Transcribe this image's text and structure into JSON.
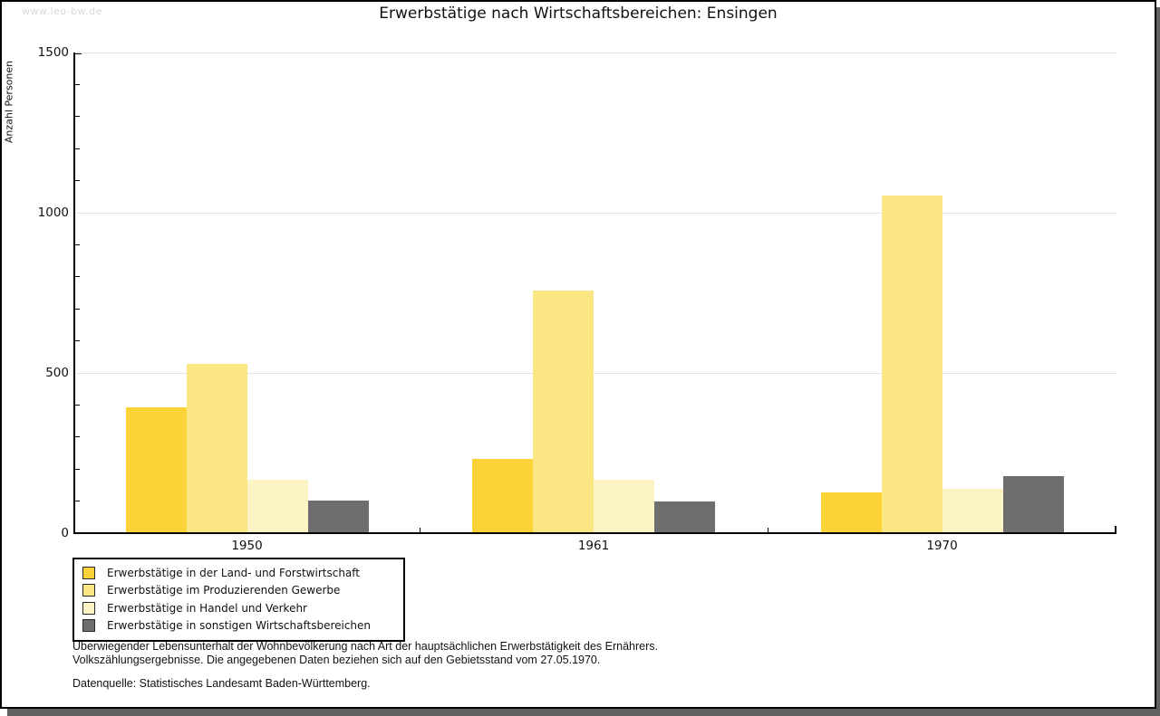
{
  "watermark": "www.leo-bw.de",
  "title": "Erwerbstätige nach Wirtschaftsbereichen: Ensingen",
  "chart_data": {
    "type": "bar",
    "title": "Erwerbstätige nach Wirtschaftsbereichen: Ensingen",
    "xlabel": "",
    "ylabel": "Anzahl Personen",
    "ylim": [
      0,
      1500
    ],
    "ytick_major": [
      0,
      500,
      1000,
      1500
    ],
    "ytick_minor_step": 100,
    "grid": "horizontal major gridlines",
    "legend_position": "bottom-left",
    "categories": [
      "1950",
      "1961",
      "1970"
    ],
    "series": [
      {
        "name": "Erwerbstätige in der Land- und Forstwirtschaft",
        "color": "#FBD336",
        "values": [
          390,
          230,
          125
        ]
      },
      {
        "name": "Erwerbstätige im Produzierenden Gewerbe",
        "color": "#FAE682",
        "values": [
          525,
          755,
          1050
        ]
      },
      {
        "name": "Erwerbstätige in Handel und Verkehr",
        "color": "#FCF4C5",
        "values": [
          165,
          165,
          135
        ]
      },
      {
        "name": "Erwerbstätige in sonstigen Wirtschaftsbereichen",
        "color": "#6E6E6E",
        "values": [
          100,
          95,
          175
        ]
      }
    ]
  },
  "footnotes": {
    "line1": "Überwiegender Lebensunterhalt der Wohnbevölkerung nach Art der hauptsächlichen Erwerbstätigkeit des Ernährers.",
    "line2": "Volkszählungsergebnisse. Die angegebenen Daten beziehen sich auf den Gebietsstand vom 27.05.1970.",
    "source": "Datenquelle: Statistisches Landesamt Baden-Württemberg."
  }
}
